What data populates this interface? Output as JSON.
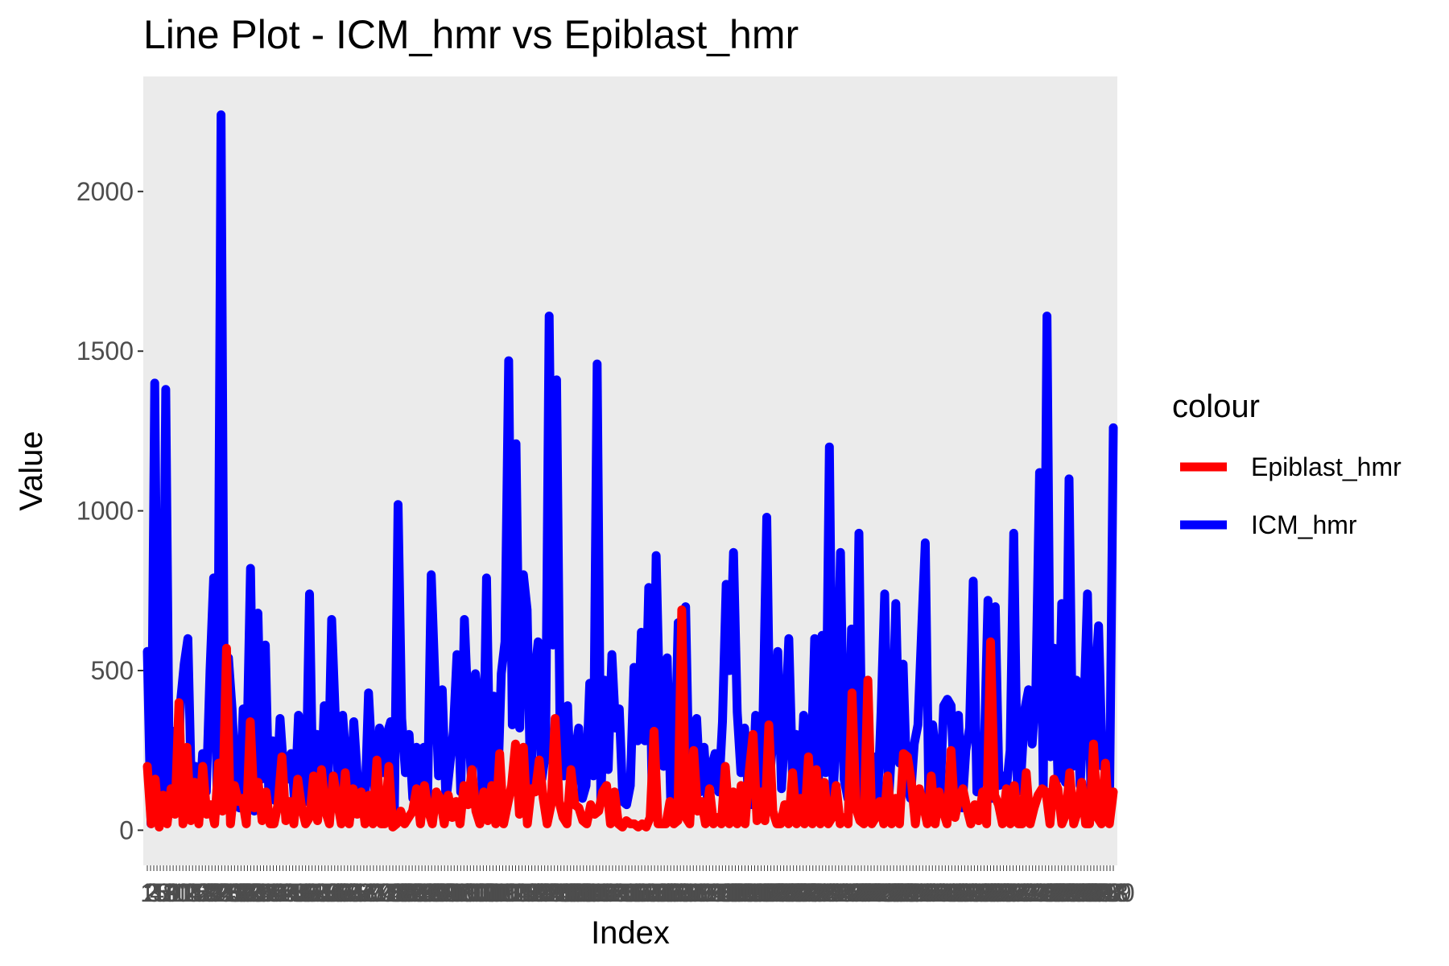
{
  "chart_data": {
    "type": "line",
    "title": "Line Plot - ICM_hmr vs Epiblast_hmr",
    "xlabel": "Index",
    "ylabel": "Value",
    "ylim": [
      -110,
      2360
    ],
    "yticks": [
      0,
      500,
      1000,
      1500,
      2000
    ],
    "ytick_labels": [
      "0",
      "500",
      "1000",
      "1500",
      "2000"
    ],
    "x_tick_note": "overplotted index labels (unreadable)",
    "grid": false,
    "legend": {
      "title": "colour",
      "position": "right",
      "entries": [
        {
          "name": "Epiblast_hmr",
          "color": "#ff0000"
        },
        {
          "name": "ICM_hmr",
          "color": "#0000ff"
        }
      ]
    },
    "panel_background": "#ebebeb",
    "series": [
      {
        "name": "ICM_hmr",
        "color": "#0000ff",
        "values": [
          560,
          20,
          1400,
          150,
          30,
          1380,
          90,
          310,
          60,
          400,
          520,
          600,
          100,
          200,
          50,
          240,
          120,
          500,
          790,
          60,
          2240,
          110,
          540,
          380,
          130,
          70,
          380,
          250,
          820,
          60,
          680,
          160,
          580,
          90,
          280,
          90,
          350,
          180,
          160,
          240,
          80,
          360,
          180,
          90,
          740,
          50,
          300,
          80,
          390,
          120,
          660,
          350,
          100,
          360,
          200,
          40,
          340,
          160,
          110,
          70,
          430,
          210,
          90,
          320,
          180,
          300,
          340,
          60,
          1020,
          350,
          180,
          300,
          100,
          260,
          60,
          260,
          90,
          800,
          470,
          170,
          440,
          90,
          200,
          310,
          550,
          120,
          660,
          370,
          130,
          490,
          380,
          80,
          790,
          110,
          420,
          110,
          490,
          590,
          1470,
          330,
          1210,
          320,
          800,
          690,
          110,
          480,
          590,
          160,
          240,
          1610,
          580,
          1410,
          230,
          170,
          390,
          80,
          240,
          320,
          100,
          140,
          460,
          170,
          1460,
          90,
          470,
          190,
          550,
          320,
          380,
          90,
          80,
          140,
          510,
          280,
          620,
          280,
          760,
          50,
          860,
          360,
          200,
          540,
          70,
          200,
          650,
          360,
          700,
          110,
          310,
          350,
          120,
          260,
          80,
          200,
          240,
          120,
          340,
          770,
          500,
          870,
          370,
          180,
          320,
          110,
          80,
          360,
          120,
          360,
          980,
          190,
          330,
          560,
          130,
          330,
          600,
          170,
          300,
          80,
          360,
          280,
          180,
          600,
          140,
          610,
          180,
          1200,
          110,
          320,
          870,
          160,
          100,
          630,
          150,
          930,
          70,
          300,
          80,
          230,
          70,
          370,
          740,
          80,
          280,
          710,
          210,
          520,
          140,
          100,
          270,
          330,
          620,
          900,
          70,
          330,
          210,
          100,
          390,
          410,
          390,
          100,
          360,
          70,
          250,
          320,
          780,
          120,
          160,
          250,
          720,
          100,
          700,
          140,
          170,
          130,
          250,
          930,
          120,
          180,
          380,
          440,
          270,
          440,
          1120,
          130,
          1610,
          230,
          570,
          160,
          710,
          150,
          1100,
          200,
          470,
          140,
          370,
          740,
          70,
          450,
          640,
          200,
          280,
          110,
          1260
        ]
      },
      {
        "name": "Epiblast_hmr",
        "color": "#ff0000",
        "values": [
          200,
          20,
          160,
          10,
          110,
          20,
          130,
          50,
          400,
          20,
          260,
          30,
          150,
          20,
          200,
          50,
          80,
          20,
          210,
          60,
          570,
          20,
          140,
          90,
          100,
          20,
          340,
          70,
          150,
          30,
          120,
          20,
          20,
          80,
          230,
          30,
          90,
          20,
          160,
          70,
          20,
          40,
          170,
          30,
          190,
          60,
          20,
          170,
          90,
          20,
          180,
          20,
          130,
          50,
          120,
          20,
          110,
          20,
          220,
          20,
          20,
          200,
          10,
          20,
          60,
          20,
          40,
          60,
          130,
          20,
          140,
          60,
          20,
          120,
          100,
          20,
          110,
          40,
          90,
          20,
          140,
          80,
          190,
          60,
          20,
          120,
          30,
          140,
          20,
          240,
          20,
          80,
          140,
          270,
          50,
          260,
          20,
          130,
          120,
          220,
          100,
          20,
          80,
          350,
          90,
          40,
          20,
          190,
          80,
          70,
          30,
          20,
          80,
          50,
          60,
          120,
          140,
          20,
          120,
          20,
          10,
          30,
          20,
          20,
          10,
          20,
          10,
          40,
          310,
          20,
          20,
          20,
          90,
          20,
          30,
          690,
          40,
          20,
          250,
          60,
          90,
          20,
          130,
          20,
          40,
          20,
          200,
          20,
          120,
          20,
          140,
          20,
          180,
          300,
          30,
          120,
          30,
          330,
          60,
          20,
          20,
          80,
          20,
          180,
          20,
          100,
          20,
          230,
          20,
          190,
          20,
          150,
          20,
          40,
          140,
          20,
          40,
          20,
          430,
          70,
          30,
          20,
          470,
          20,
          40,
          90,
          20,
          170,
          20,
          100,
          20,
          240,
          230,
          150,
          20,
          130,
          80,
          20,
          170,
          20,
          120,
          60,
          20,
          250,
          40,
          100,
          130,
          70,
          20,
          80,
          30,
          120,
          20,
          590,
          110,
          80,
          20,
          130,
          20,
          140,
          20,
          20,
          180,
          20,
          70,
          110,
          130,
          120,
          20,
          160,
          130,
          20,
          50,
          180,
          20,
          60,
          150,
          20,
          20,
          270,
          40,
          20,
          210,
          20,
          120
        ]
      }
    ]
  }
}
